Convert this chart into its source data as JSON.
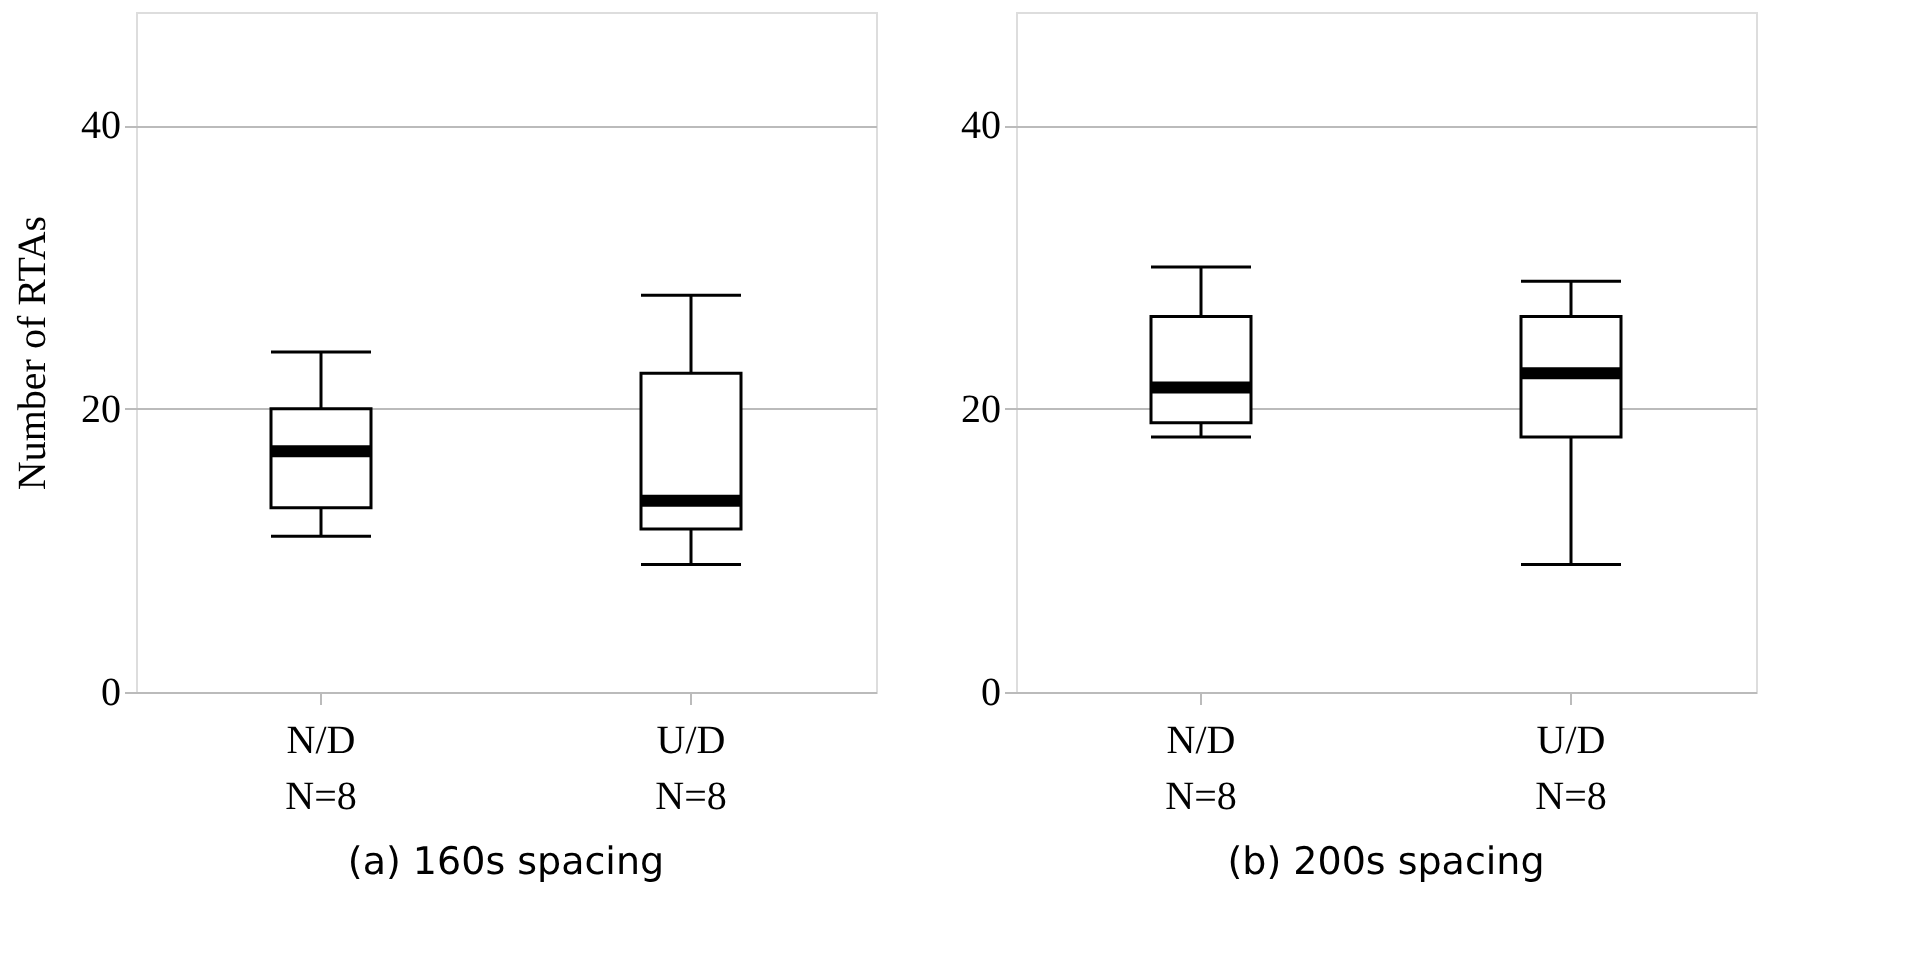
{
  "chart_data": [
    {
      "type": "box",
      "title": "(a)  160s spacing",
      "ylabel": "Number of RTAs",
      "categories": [
        "N/D\nN=8",
        "U/D\nN=8"
      ],
      "ylim": [
        0,
        48
      ],
      "yticks": [
        0,
        20,
        40
      ],
      "grid": "y",
      "boxes": [
        {
          "low": 11,
          "q1": 13,
          "median": 17,
          "q3": 20,
          "high": 24
        },
        {
          "low": 9,
          "q1": 11.5,
          "median": 13.5,
          "q3": 22.5,
          "high": 28
        }
      ]
    },
    {
      "type": "box",
      "title": "(b)  200s spacing",
      "categories": [
        "N/D\nN=8",
        "U/D\nN=8"
      ],
      "ylim": [
        0,
        48
      ],
      "yticks": [
        0,
        20,
        40
      ],
      "grid": "y",
      "boxes": [
        {
          "low": 18,
          "q1": 19,
          "median": 21.5,
          "q3": 26.5,
          "high": 30
        },
        {
          "low": 9,
          "q1": 18,
          "median": 22.5,
          "q3": 26.5,
          "high": 29
        }
      ]
    }
  ]
}
